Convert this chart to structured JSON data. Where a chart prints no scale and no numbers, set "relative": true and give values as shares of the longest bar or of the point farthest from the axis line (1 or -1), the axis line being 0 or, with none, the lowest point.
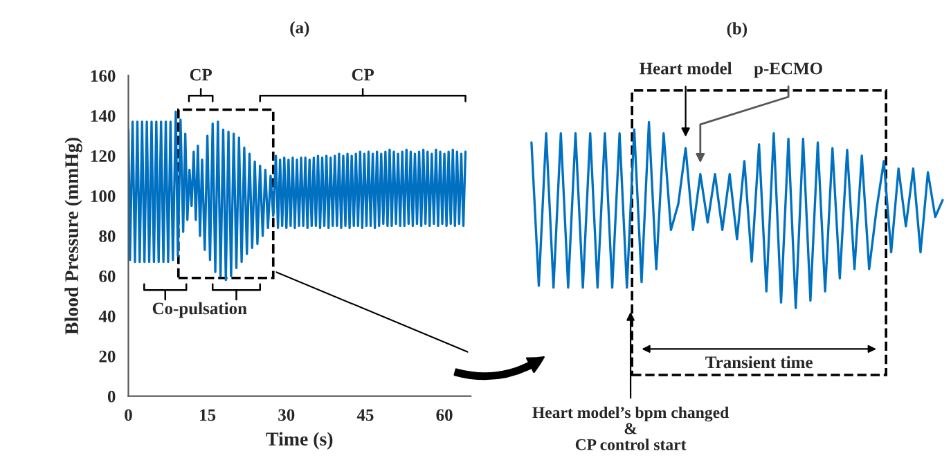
{
  "chart_data": [
    {
      "type": "line",
      "title": "(a)",
      "xlabel": "Time (s)",
      "ylabel": "Blood Pressure (mmHg)",
      "series": [
        {
          "color": "#0070c0",
          "x": [
            0,
            0.3,
            0.8,
            1.25,
            1.7,
            2.15,
            2.6,
            3.05,
            3.5,
            3.95,
            4.4,
            4.85,
            5.3,
            5.75,
            6.2,
            6.65,
            7.1,
            7.55,
            8.0,
            8.45,
            9.0,
            9.4,
            9.9,
            10.4,
            10.8,
            11.2,
            11.6,
            12.0,
            12.4,
            12.8,
            13.2,
            13.6,
            14.0,
            14.5,
            15.0,
            15.5,
            16.0,
            16.5,
            17.0,
            17.5,
            18.0,
            18.5,
            19.0,
            19.5,
            20.0,
            20.5,
            21.0,
            21.5,
            22.0,
            22.5,
            23.0,
            23.5,
            24.0,
            24.5,
            25.0,
            25.5,
            26.0,
            26.5,
            27.0,
            27.5,
            28.0,
            28.4,
            28.8,
            29.2,
            29.6,
            30.0,
            30.4,
            30.8,
            31.2,
            31.6,
            32.0,
            32.4,
            32.8,
            33.2,
            33.6,
            34.0,
            34.4,
            34.8,
            35.2,
            35.6,
            36.0,
            36.4,
            36.8,
            37.2,
            37.6,
            38.0,
            38.4,
            38.8,
            39.2,
            39.6,
            40.0,
            40.4,
            40.8,
            41.2,
            41.6,
            42.0,
            42.4,
            42.8,
            43.2,
            43.6,
            44.0,
            44.4,
            44.8,
            45.2,
            45.6,
            46.0,
            46.4,
            46.8,
            47.2,
            47.6,
            48.0,
            48.4,
            48.8,
            49.2,
            49.6,
            50.0,
            50.4,
            50.8,
            51.2,
            51.6,
            52.0,
            52.4,
            52.8,
            53.2,
            53.6,
            54.0,
            54.4,
            54.8,
            55.2,
            55.6,
            56.0,
            56.4,
            56.8,
            57.2,
            57.6,
            58.0,
            58.4,
            58.8,
            59.2,
            59.6,
            60.0,
            60.4,
            60.8,
            61.2,
            61.6,
            62.0,
            62.4,
            62.8,
            63.2,
            63.6,
            64.0
          ],
          "values": [
            133,
            68,
            137,
            67,
            137,
            67,
            137,
            67,
            137,
            67,
            137,
            67,
            137,
            67,
            137,
            67,
            137,
            67,
            137,
            68,
            142,
            70,
            138,
            82,
            131,
            88,
            113,
            95,
            122,
            88,
            125,
            80,
            118,
            73,
            130,
            68,
            136,
            62,
            137,
            60,
            133,
            58,
            132,
            60,
            131,
            64,
            129,
            67,
            124,
            71,
            121,
            74,
            117,
            76,
            115,
            80,
            113,
            84,
            110,
            90,
            120,
            84,
            118,
            85,
            119,
            84,
            118,
            85,
            119,
            84,
            118,
            85,
            119,
            85,
            119,
            84,
            118,
            85,
            119,
            85,
            120,
            84,
            119,
            85,
            120,
            84,
            119,
            85,
            120,
            85,
            121,
            84,
            120,
            85,
            121,
            84,
            120,
            85,
            121,
            85,
            122,
            84,
            121,
            85,
            122,
            85,
            121,
            84,
            122,
            85,
            121,
            86,
            122,
            85,
            123,
            85,
            122,
            86,
            121,
            85,
            122,
            85,
            123,
            86,
            122,
            85,
            121,
            86,
            122,
            85,
            123,
            86,
            122,
            85,
            121,
            86,
            123,
            85,
            122,
            86,
            121,
            85,
            122,
            86,
            123,
            85,
            122,
            86,
            121,
            85,
            122
          ]
        }
      ],
      "xlim": [
        0,
        65
      ],
      "xticks": [
        0,
        15,
        30,
        45,
        60
      ],
      "ylim": [
        0,
        160
      ],
      "yticks": [
        0,
        20,
        40,
        60,
        80,
        100,
        120,
        140,
        160
      ],
      "grid": false,
      "marker": "none",
      "line_style": "solid",
      "annotations": [
        "CP",
        "CP",
        "Co-pulsation"
      ]
    },
    {
      "type": "line",
      "title": "(b)",
      "relative": true,
      "categories": [
        null,
        null,
        null,
        null,
        null,
        null,
        null,
        null,
        null,
        null,
        null,
        null,
        null,
        null,
        null,
        null,
        null,
        null,
        null,
        null,
        null,
        null,
        null,
        null,
        null,
        null,
        null,
        null,
        null,
        null,
        null,
        null,
        null,
        null,
        null,
        null,
        null,
        null,
        null,
        null,
        null,
        null,
        null,
        null,
        null,
        null,
        null,
        null,
        null,
        null,
        null,
        null,
        null,
        null,
        null,
        null,
        null
      ],
      "series": [
        {
          "color": "#0070c0",
          "values": [
            0.89,
            0.12,
            0.94,
            0.11,
            0.94,
            0.11,
            0.94,
            0.11,
            0.94,
            0.11,
            0.94,
            0.11,
            0.94,
            0.11,
            0.96,
            0.14,
            1,
            0.21,
            0.94,
            0.42,
            0.56,
            0.86,
            0.42,
            0.72,
            0.46,
            0.72,
            0.42,
            0.72,
            0.37,
            0.79,
            0.25,
            0.88,
            0.09,
            0.94,
            0.03,
            0.91,
            0,
            0.91,
            0.04,
            0.89,
            0.09,
            0.86,
            0.16,
            0.85,
            0.21,
            0.82,
            0.21,
            0.53,
            0.79,
            0.3,
            0.75,
            0.44,
            0.75,
            0.3,
            0.73,
            0.49,
            0.58
          ]
        }
      ],
      "grid": false,
      "marker": "none",
      "line_style": "solid",
      "annotations": [
        "Heart model",
        "p-ECMO",
        "Transient time",
        "Heart model’s bpm changed\n&\nCP control start"
      ]
    }
  ]
}
